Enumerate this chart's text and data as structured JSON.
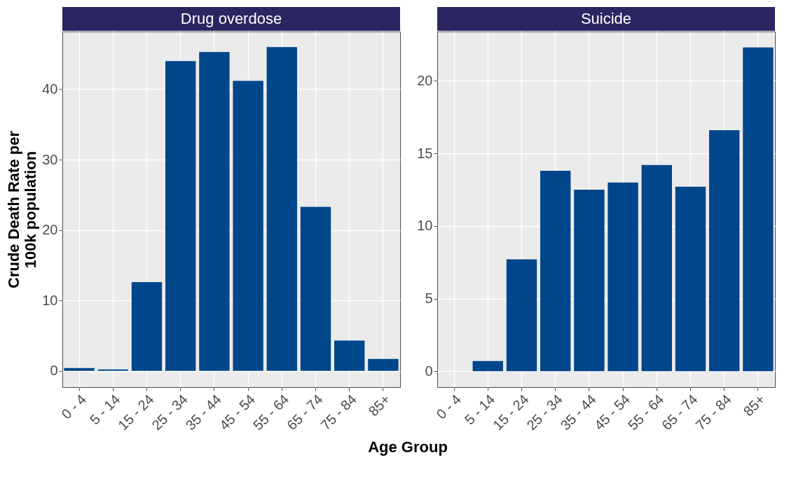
{
  "chart_data": [
    {
      "type": "bar",
      "title": "Drug overdose",
      "xlabel": "Age Group",
      "ylabel": "Crude Death Rate per 100k population",
      "categories": [
        "0 - 4",
        "5 - 14",
        "15 - 24",
        "25 - 34",
        "35 - 44",
        "45 - 54",
        "55 - 64",
        "65 - 74",
        "75 - 84",
        "85+"
      ],
      "values": [
        0.4,
        0.2,
        12.6,
        44.0,
        45.3,
        41.2,
        46.0,
        23.3,
        4.3,
        1.7
      ],
      "color": "#00468b",
      "ylim": [
        -2.3,
        48.2
      ],
      "yticks": [
        0,
        10,
        20,
        30,
        40
      ],
      "grid": true
    },
    {
      "type": "bar",
      "title": "Suicide",
      "categories": [
        "0 - 4",
        "5 - 14",
        "15 - 24",
        "25 - 34",
        "35 - 44",
        "45 - 54",
        "55 - 64",
        "65 - 74",
        "75 - 84",
        "85+"
      ],
      "values": [
        null,
        0.7,
        7.7,
        13.8,
        12.5,
        13.0,
        14.2,
        12.7,
        16.6,
        22.3
      ],
      "color": "#00468b",
      "ylim": [
        -1.1,
        23.4
      ],
      "yticks": [
        0,
        5,
        10,
        15,
        20
      ],
      "grid": true
    }
  ]
}
